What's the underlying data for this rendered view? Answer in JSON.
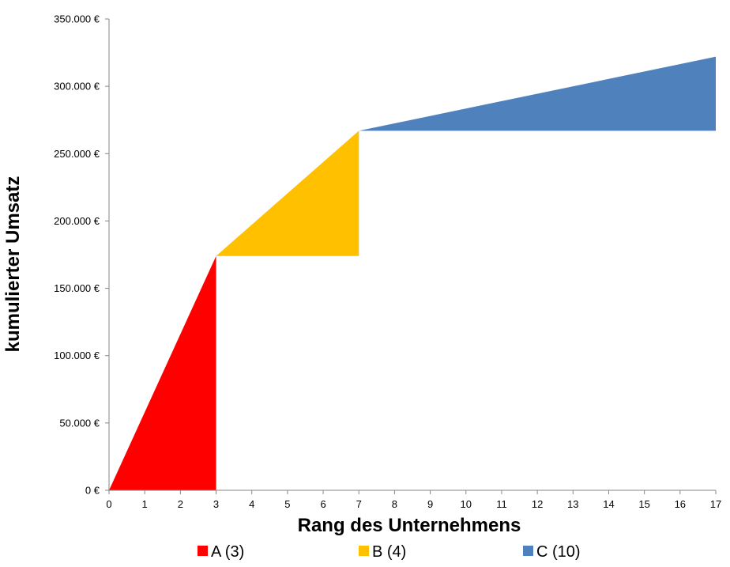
{
  "chart_data": {
    "type": "area",
    "xlabel": "Rang des Unternehmens",
    "ylabel": "kumulierter Umsatz",
    "xlim": [
      0,
      17
    ],
    "ylim": [
      0,
      350000
    ],
    "x_ticks": [
      "0",
      "1",
      "2",
      "3",
      "4",
      "5",
      "6",
      "7",
      "8",
      "9",
      "10",
      "11",
      "12",
      "13",
      "14",
      "15",
      "16",
      "17"
    ],
    "y_ticks": [
      "0 €",
      "50.000 €",
      "100.000 €",
      "150.000 €",
      "200.000 €",
      "250.000 €",
      "300.000 €",
      "350.000 €"
    ],
    "y_tick_values": [
      0,
      50000,
      100000,
      150000,
      200000,
      250000,
      300000,
      350000
    ],
    "grid": false,
    "legend_position": "bottom",
    "series": [
      {
        "name": "A (3)",
        "color": "#ff0000",
        "x": [
          0,
          3
        ],
        "y": [
          0,
          174000
        ],
        "base": 0
      },
      {
        "name": "B (4)",
        "color": "#ffc000",
        "x": [
          3,
          7
        ],
        "y": [
          174000,
          267000
        ],
        "base": 174000
      },
      {
        "name": "C (10)",
        "color": "#4f81bd",
        "x": [
          7,
          17
        ],
        "y": [
          267000,
          322000
        ],
        "base": 267000
      }
    ]
  }
}
